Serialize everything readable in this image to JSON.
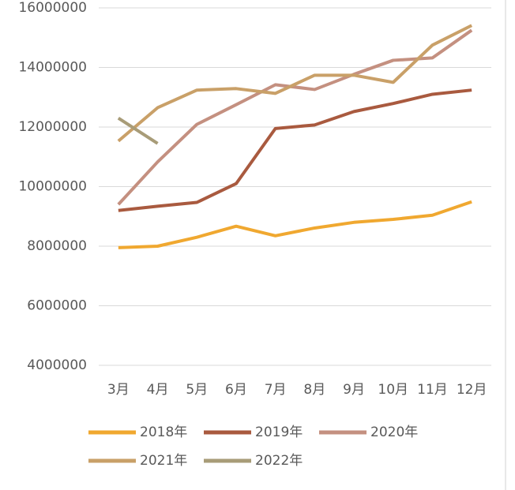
{
  "chart_data": {
    "type": "line",
    "categories": [
      "3月",
      "4月",
      "5月",
      "6月",
      "7月",
      "8月",
      "9月",
      "10月",
      "11月",
      "12月"
    ],
    "series": [
      {
        "name": "2018年",
        "color": "#f0a830",
        "values": [
          7950000,
          8000000,
          8300000,
          8670000,
          8350000,
          8610000,
          8800000,
          8900000,
          9040000,
          9490000
        ]
      },
      {
        "name": "2019年",
        "color": "#a95a3f",
        "values": [
          9200000,
          9340000,
          9470000,
          10100000,
          11950000,
          12070000,
          12520000,
          12790000,
          13100000,
          13240000
        ]
      },
      {
        "name": "2020年",
        "color": "#c49080",
        "values": [
          9400000,
          10830000,
          12090000,
          12750000,
          13420000,
          13260000,
          13770000,
          14240000,
          14320000,
          15250000
        ]
      },
      {
        "name": "2021年",
        "color": "#c9a068",
        "values": [
          11530000,
          12650000,
          13240000,
          13290000,
          13130000,
          13740000,
          13740000,
          13500000,
          14750000,
          15410000
        ]
      },
      {
        "name": "2022年",
        "color": "#a89c78",
        "values": [
          12300000,
          11450000,
          null,
          null,
          null,
          null,
          null,
          null,
          null,
          null
        ]
      }
    ],
    "ylim": [
      4000000,
      16000000
    ],
    "yticks": [
      4000000,
      6000000,
      8000000,
      10000000,
      12000000,
      14000000,
      16000000
    ],
    "grid": true,
    "legend": "bottom"
  }
}
